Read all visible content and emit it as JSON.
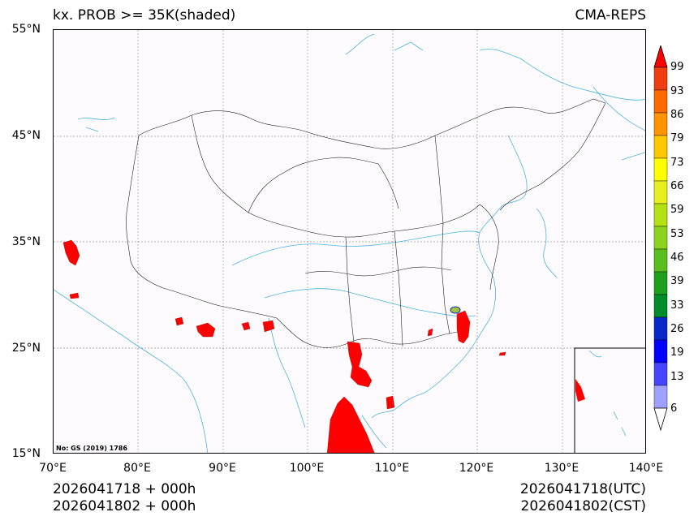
{
  "header": {
    "title_left": "kx. PROB >= 35K(shaded)",
    "title_right": "CMA-REPS"
  },
  "map": {
    "lon_ticks": [
      "70°E",
      "80°E",
      "90°E",
      "100°E",
      "110°E",
      "120°E",
      "130°E",
      "140°E"
    ],
    "lat_ticks": [
      "55°N",
      "45°N",
      "35°N",
      "25°N",
      "15°N"
    ],
    "extent": {
      "lon": [
        70,
        140
      ],
      "lat": [
        15,
        55
      ]
    },
    "grid": true,
    "note": "No: GS (2019) 1786",
    "colors": {
      "background": "#fdfbfd",
      "border": "#222222",
      "coast_river": "#4fb3e0",
      "grid": "#999999",
      "high_prob": "#ff0000"
    }
  },
  "colorbar": {
    "levels": [
      "99",
      "93",
      "86",
      "79",
      "73",
      "66",
      "59",
      "53",
      "46",
      "39",
      "33",
      "26",
      "19",
      "13",
      "6"
    ],
    "colors": [
      "#ff0000",
      "#f03d10",
      "#ff6a00",
      "#ff9400",
      "#ffc800",
      "#ffff00",
      "#e6f01e",
      "#b4e014",
      "#8cd21e",
      "#5abe1e",
      "#1ea01e",
      "#008c28",
      "#0a28c8",
      "#0000ff",
      "#4646ff",
      "#a0a0ff"
    ],
    "extend": "both"
  },
  "footer": {
    "left_line1": "2026041718  +  000h",
    "left_line2": "2026041802  +  000h",
    "right_line1": "2026041718(UTC)",
    "right_line2": "2026041802(CST)"
  }
}
